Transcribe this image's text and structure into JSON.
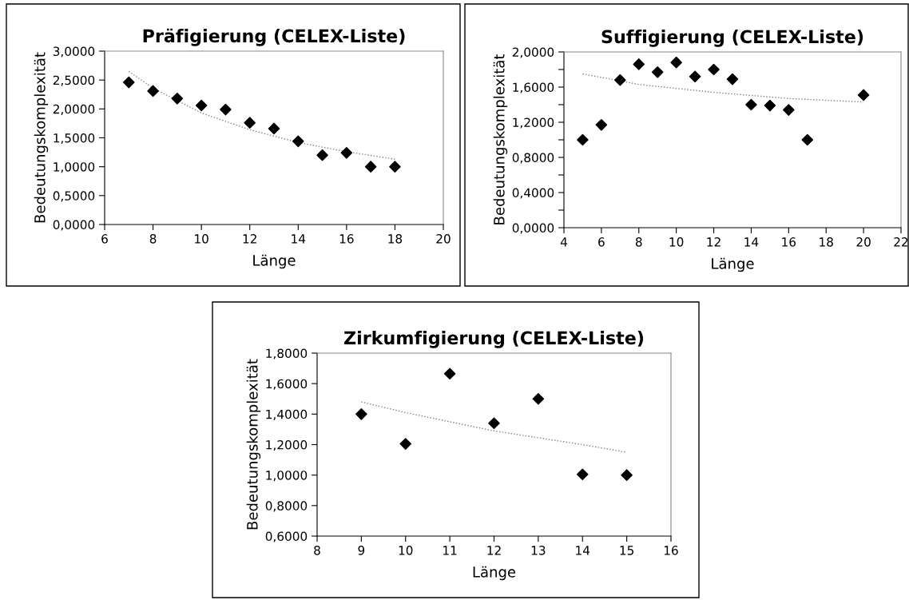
{
  "chart_data": [
    {
      "type": "scatter",
      "title": "Präfigierung (CELEX-Liste)",
      "xlabel": "Länge",
      "ylabel": "Bedeutungskomplexität",
      "grid": false,
      "legend": false,
      "series": [
        {
          "marker": "diamond",
          "color": "#000000",
          "x": [
            7,
            8,
            9,
            10,
            11,
            12,
            13,
            14,
            15,
            16,
            17,
            18
          ],
          "values": [
            2.46,
            2.31,
            2.18,
            2.06,
            1.99,
            1.76,
            1.66,
            1.44,
            1.2,
            1.24,
            1.0,
            1.0
          ]
        },
        {
          "type": "line",
          "color": "#808080",
          "line_style": "dotted",
          "x": [
            7,
            8,
            10,
            12,
            14,
            16,
            18
          ],
          "values": [
            2.65,
            2.36,
            1.93,
            1.64,
            1.42,
            1.26,
            1.13
          ]
        }
      ],
      "xlim": [
        6,
        20
      ],
      "xticks": [
        6,
        8,
        10,
        12,
        14,
        16,
        18,
        20
      ],
      "ylim": [
        0,
        3
      ],
      "yticks": [
        {
          "value": 0,
          "label": "0,0000"
        },
        {
          "value": 0.5,
          "label": "0,5000"
        },
        {
          "value": 1,
          "label": "1,0000"
        },
        {
          "value": 1.5,
          "label": "1,5000"
        },
        {
          "value": 2,
          "label": "2,0000"
        },
        {
          "value": 2.5,
          "label": "2,5000"
        },
        {
          "value": 3,
          "label": "3,0000"
        }
      ]
    },
    {
      "type": "scatter",
      "title": "Suffigierung (CELEX-Liste)",
      "xlabel": "Länge",
      "ylabel": "Bedeutungskomplexität",
      "grid": false,
      "legend": false,
      "series": [
        {
          "marker": "diamond",
          "color": "#000000",
          "x": [
            5,
            6,
            7,
            8,
            9,
            10,
            11,
            12,
            13,
            14,
            15,
            16,
            17,
            20
          ],
          "values": [
            1.0,
            1.17,
            1.68,
            1.86,
            1.77,
            1.88,
            1.72,
            1.8,
            1.69,
            1.4,
            1.39,
            1.34,
            1.0,
            1.51
          ]
        },
        {
          "type": "line",
          "color": "#808080",
          "line_style": "dotted",
          "x": [
            5,
            8,
            12,
            16,
            20
          ],
          "values": [
            1.75,
            1.63,
            1.54,
            1.47,
            1.43
          ]
        }
      ],
      "xlim": [
        4,
        22
      ],
      "xticks": [
        4,
        6,
        8,
        10,
        12,
        14,
        16,
        18,
        20,
        22
      ],
      "ylim": [
        0,
        2
      ],
      "yticks": [
        {
          "value": 0,
          "label": "0,0000"
        },
        {
          "value": 0.2,
          "label": null
        },
        {
          "value": 0.4,
          "label": "0,4000"
        },
        {
          "value": 0.6,
          "label": null
        },
        {
          "value": 0.8,
          "label": "0,8000"
        },
        {
          "value": 1.0,
          "label": null
        },
        {
          "value": 1.2,
          "label": "1,2000"
        },
        {
          "value": 1.4,
          "label": null
        },
        {
          "value": 1.6,
          "label": "1,6000"
        },
        {
          "value": 1.8,
          "label": null
        },
        {
          "value": 2.0,
          "label": "2,0000"
        }
      ]
    },
    {
      "type": "scatter",
      "title": "Zirkumfigierung (CELEX-Liste)",
      "xlabel": "Länge",
      "ylabel": "Bedeutungskomplexität",
      "grid": false,
      "legend": false,
      "series": [
        {
          "marker": "diamond",
          "color": "#000000",
          "x": [
            9,
            10,
            11,
            12,
            13,
            14,
            15
          ],
          "values": [
            1.4,
            1.205,
            1.665,
            1.34,
            1.5,
            1.005,
            1.0
          ]
        },
        {
          "type": "line",
          "color": "#808080",
          "line_style": "dotted",
          "x": [
            9,
            10,
            12,
            14,
            15
          ],
          "values": [
            1.48,
            1.41,
            1.29,
            1.2,
            1.15
          ]
        }
      ],
      "xlim": [
        8,
        16
      ],
      "xticks": [
        8,
        9,
        10,
        11,
        12,
        13,
        14,
        15,
        16
      ],
      "ylim": [
        0.6,
        1.8
      ],
      "yticks": [
        {
          "value": 0.6,
          "label": "0,6000"
        },
        {
          "value": 0.8,
          "label": "0,8000"
        },
        {
          "value": 1.0,
          "label": "1,0000"
        },
        {
          "value": 1.2,
          "label": "1,2000"
        },
        {
          "value": 1.4,
          "label": "1,4000"
        },
        {
          "value": 1.6,
          "label": "1,6000"
        },
        {
          "value": 1.8,
          "label": "1,8000"
        }
      ]
    }
  ]
}
